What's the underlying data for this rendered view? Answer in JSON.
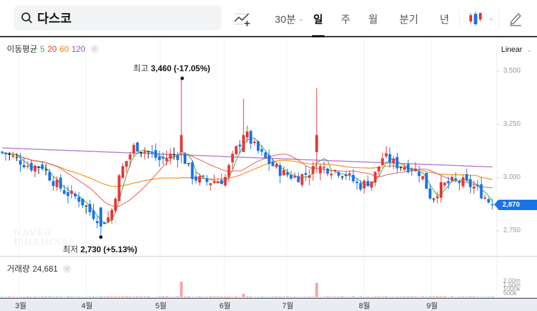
{
  "search": {
    "query": "다스코"
  },
  "toolbar": {
    "indicator_add": "indicator-add",
    "periods": [
      {
        "label": "30분",
        "dropdown": true,
        "active": false
      },
      {
        "label": "일",
        "active": true
      },
      {
        "label": "주",
        "active": false
      },
      {
        "label": "월",
        "active": false
      },
      {
        "label": "분기",
        "active": false
      },
      {
        "label": "년",
        "active": false
      }
    ],
    "chart_type": "candlestick",
    "chevron": "⌄"
  },
  "ma_legend": {
    "label": "이동평균",
    "periods": [
      {
        "value": "5",
        "color": "#4caf50"
      },
      {
        "value": "20",
        "color": "#e53935"
      },
      {
        "value": "60",
        "color": "#f57c00"
      },
      {
        "value": "120",
        "color": "#9c4dcc"
      }
    ],
    "close": "×"
  },
  "scale": {
    "label": "Linear"
  },
  "y_axis": [
    "3,500",
    "3,250",
    "3,000",
    "2,750"
  ],
  "current_price": "2,870",
  "annotations": {
    "high": {
      "label": "최고",
      "value": "3,460 (-17.05%)"
    },
    "low": {
      "label": "최저",
      "value": "2,730 (+5.13%)"
    }
  },
  "watermark": {
    "line1": "NAVER",
    "line2": "FINANCIAL"
  },
  "volume_legend": {
    "label": "거래량",
    "value": "24,681",
    "close": "×"
  },
  "volume_axis": [
    "2.00m",
    "1.50m",
    "1000k",
    "500k"
  ],
  "x_axis": [
    "3월",
    "4월",
    "5월",
    "6월",
    "7월",
    "8월",
    "9월"
  ],
  "colors": {
    "up": "#e53935",
    "down": "#1a73e8",
    "ma5": "#4caf50",
    "ma20": "#e53935",
    "ma60": "#f57c00",
    "ma120": "#9c4dcc"
  },
  "chart_data": {
    "type": "candlestick",
    "title": "다스코",
    "interval": "일",
    "xlabel": "",
    "ylabel": "",
    "ylim": [
      2700,
      3550
    ],
    "y_ticks": [
      2750,
      3000,
      3250,
      3500
    ],
    "x_ticks": [
      "3월",
      "4월",
      "5월",
      "6월",
      "7월",
      "8월",
      "9월"
    ],
    "high": {
      "value": 3460,
      "pct": "-17.05%",
      "month": "5월"
    },
    "low": {
      "value": 2730,
      "pct": "+5.13%",
      "month": "4월"
    },
    "last_close": 2870,
    "last_volume": 24681,
    "moving_averages": [
      5,
      20,
      60,
      120
    ],
    "monthly_approx": [
      {
        "month": "3월",
        "open": 3130,
        "high": 3160,
        "low": 2900,
        "close": 2960
      },
      {
        "month": "4월",
        "open": 2960,
        "high": 3050,
        "low": 2730,
        "close": 3100
      },
      {
        "month": "5월",
        "open": 3100,
        "high": 3460,
        "low": 2970,
        "close": 2990
      },
      {
        "month": "6월",
        "open": 2990,
        "high": 3370,
        "low": 2970,
        "close": 3050
      },
      {
        "month": "7월",
        "open": 3050,
        "high": 3420,
        "low": 2920,
        "close": 3010
      },
      {
        "month": "8월",
        "open": 3010,
        "high": 3150,
        "low": 2920,
        "close": 3030
      },
      {
        "month": "9월",
        "open": 3030,
        "high": 3050,
        "low": 2850,
        "close": 2870
      }
    ],
    "ma_end_values": {
      "ma5": 2920,
      "ma20": 2960,
      "ma60": 2990,
      "ma120": 3050
    },
    "volume_ylim": [
      0,
      2000000
    ],
    "grid": true,
    "legend_position": "top-left"
  }
}
